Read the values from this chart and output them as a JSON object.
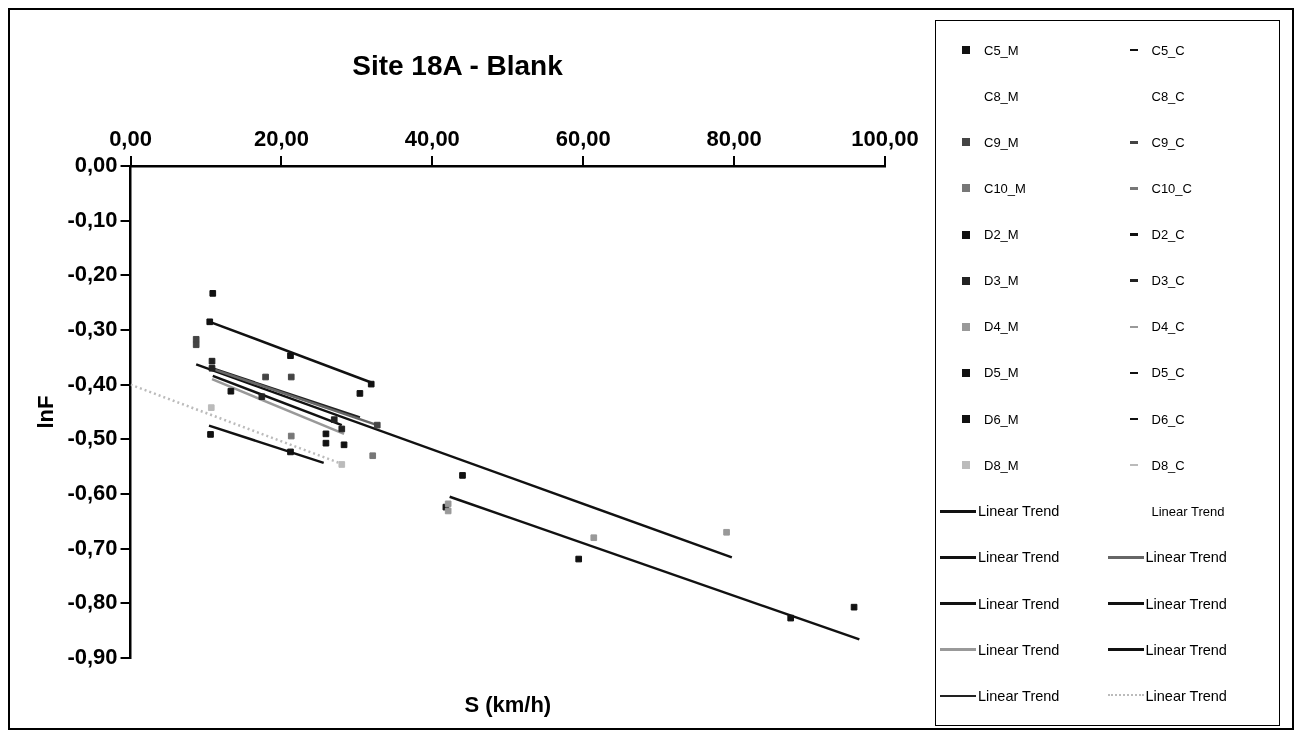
{
  "chart_data": {
    "type": "scatter",
    "title": "Site 18A - Blank",
    "xlabel": "S (km/h)",
    "ylabel": "lnF",
    "xlim": [
      0,
      100
    ],
    "ylim": [
      -0.9,
      0
    ],
    "xticks": [
      {
        "value": 0,
        "label": "0,00"
      },
      {
        "value": 20,
        "label": "20,00"
      },
      {
        "value": 40,
        "label": "40,00"
      },
      {
        "value": 60,
        "label": "60,00"
      },
      {
        "value": 80,
        "label": "80,00"
      },
      {
        "value": 100,
        "label": "100,00"
      }
    ],
    "yticks": [
      {
        "value": 0,
        "label": "0,00"
      },
      {
        "value": -0.1,
        "label": "-0,10"
      },
      {
        "value": -0.2,
        "label": "-0,20"
      },
      {
        "value": -0.3,
        "label": "-0,30"
      },
      {
        "value": -0.4,
        "label": "-0,40"
      },
      {
        "value": -0.5,
        "label": "-0,50"
      },
      {
        "value": -0.6,
        "label": "-0,60"
      },
      {
        "value": -0.7,
        "label": "-0,70"
      },
      {
        "value": -0.8,
        "label": "-0,80"
      },
      {
        "value": -0.9,
        "label": "-0,90"
      }
    ],
    "legend": "right",
    "series": [
      {
        "name": "C5_M",
        "marker": "square",
        "color": "#111111",
        "x": [
          10.5,
          10.9,
          21.2,
          31.9
        ],
        "values": [
          -0.285,
          -0.233,
          -0.347,
          -0.399
        ]
      },
      {
        "name": "C5_C",
        "type": "line",
        "color": "#111111"
      },
      {
        "name": "C8_M"
      },
      {
        "name": "C8_C",
        "type": "line"
      },
      {
        "name": "C9_M",
        "marker": "square",
        "color": "#444444",
        "x": [
          8.7,
          8.7,
          17.9,
          21.3,
          32.7
        ],
        "values": [
          -0.317,
          -0.327,
          -0.386,
          -0.386,
          -0.474
        ]
      },
      {
        "name": "C9_C",
        "type": "line",
        "color": "#444444"
      },
      {
        "name": "C10_M",
        "marker": "square",
        "color": "#777777",
        "x": [
          21.3,
          32.1
        ],
        "values": [
          -0.494,
          -0.53
        ]
      },
      {
        "name": "C10_C",
        "type": "line",
        "color": "#777777"
      },
      {
        "name": "D2_M",
        "marker": "square",
        "color": "#111111",
        "x": [
          10.6,
          21.2,
          25.9,
          25.9
        ],
        "values": [
          -0.491,
          -0.523,
          -0.507,
          -0.49
        ]
      },
      {
        "name": "D2_C",
        "type": "line",
        "color": "#111111"
      },
      {
        "name": "D3_M",
        "marker": "square",
        "color": "#222222",
        "x": [
          10.8,
          10.8,
          17.4,
          27,
          28
        ],
        "values": [
          -0.357,
          -0.37,
          -0.422,
          -0.464,
          -0.481
        ]
      },
      {
        "name": "D3_C",
        "type": "line",
        "color": "#222222"
      },
      {
        "name": "D4_M",
        "marker": "square",
        "color": "#999999",
        "x": [
          42.1,
          42.1,
          61.4,
          79
        ],
        "values": [
          -0.618,
          -0.631,
          -0.68,
          -0.67
        ]
      },
      {
        "name": "D4_C",
        "type": "line",
        "color": "#999999"
      },
      {
        "name": "D5_M",
        "marker": "square",
        "color": "#111111",
        "x": [
          13.3,
          30.4,
          28.3
        ],
        "values": [
          -0.412,
          -0.416,
          -0.51
        ]
      },
      {
        "name": "D5_C",
        "type": "line",
        "color": "#111111"
      },
      {
        "name": "D6_M",
        "marker": "square",
        "color": "#111111",
        "x": [
          44,
          59.4,
          87.5,
          95.9,
          41.8
        ],
        "values": [
          -0.566,
          -0.719,
          -0.827,
          -0.807,
          -0.624
        ]
      },
      {
        "name": "D6_C",
        "type": "line",
        "color": "#111111"
      },
      {
        "name": "D8_M",
        "marker": "square",
        "color": "#bbbbbb",
        "x": [
          10.7,
          28
        ],
        "values": [
          -0.442,
          -0.546
        ]
      },
      {
        "name": "D8_C",
        "type": "line",
        "color": "#bbbbbb"
      },
      {
        "name": "Linear Trend",
        "type": "line",
        "color": "#111111",
        "x": [
          10.5,
          31.9
        ],
        "values": [
          -0.285,
          -0.396
        ]
      },
      {
        "name": "Linear Trend",
        "type": "line"
      },
      {
        "name": "Linear Trend",
        "type": "line",
        "color": "#111111",
        "x": [
          10.9,
          28
        ],
        "values": [
          -0.384,
          -0.474
        ]
      },
      {
        "name": "Linear Trend",
        "type": "line",
        "color": "#666666",
        "x": [
          11.2,
          32.7
        ],
        "values": [
          -0.373,
          -0.474
        ]
      },
      {
        "name": "Linear Trend",
        "type": "line",
        "color": "#111111",
        "x": [
          10.4,
          25.6
        ],
        "values": [
          -0.475,
          -0.543
        ]
      },
      {
        "name": "Linear Trend",
        "type": "line",
        "color": "#111111",
        "x": [
          8.7,
          79.7
        ],
        "values": [
          -0.363,
          -0.716
        ]
      },
      {
        "name": "Linear Trend",
        "type": "line",
        "color": "#999999",
        "x": [
          10.8,
          28.3
        ],
        "values": [
          -0.39,
          -0.49
        ]
      },
      {
        "name": "Linear Trend",
        "type": "line",
        "color": "#111111",
        "x": [
          42.3,
          96.6
        ],
        "values": [
          -0.605,
          -0.866
        ]
      },
      {
        "name": "Linear Trend",
        "type": "line",
        "color": "#222222",
        "x": [
          10.8,
          30.4
        ],
        "values": [
          -0.37,
          -0.46
        ]
      },
      {
        "name": "Linear Trend",
        "type": "line",
        "color": "#bbbbbb",
        "line_style": "dotted",
        "x": [
          0,
          28
        ],
        "values": [
          -0.4,
          -0.545
        ]
      }
    ]
  }
}
